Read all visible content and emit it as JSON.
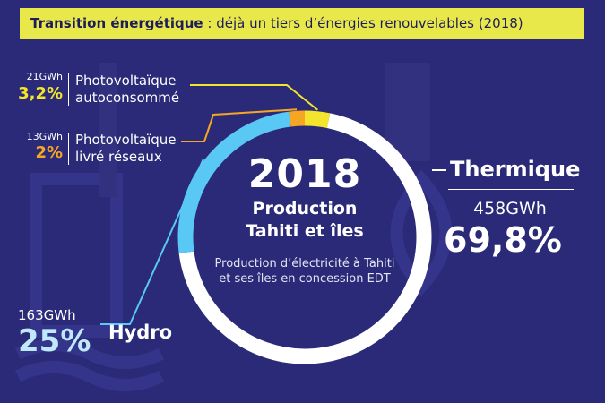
{
  "banner": {
    "bold": "Transition énergétique",
    "rest": " : déjà un tiers d’énergies renouvelables (2018)"
  },
  "center": {
    "year": "2018",
    "line1": "Production",
    "line2": "Tahiti et îles",
    "desc": "Production d’électricité à Tahiti et ses îles en concession EDT"
  },
  "colors": {
    "background": "#2a2a78",
    "banner": "#e9e84a",
    "thermique": "#ffffff",
    "hydro": "#5ac8f5",
    "pv_reseau": "#f5a623",
    "pv_auto": "#f2e52b"
  },
  "chart_data": {
    "type": "pie",
    "title": "2018",
    "subtitle": "Production Tahiti et îles",
    "slices": [
      {
        "name": "Photovoltaïque autoconsommé",
        "gwh_label": "21GWh",
        "pct_label": "3,2%",
        "value": 3.2,
        "color": "#f2e52b"
      },
      {
        "name": "Thermique",
        "gwh_label": "458GWh",
        "pct_label": "69,8%",
        "value": 69.8,
        "color": "#ffffff"
      },
      {
        "name": "Hydro",
        "gwh_label": "163GWh",
        "pct_label": "25%",
        "value": 25,
        "color": "#5ac8f5"
      },
      {
        "name": "Photovoltaïque livré réseaux",
        "gwh_label": "13GWh",
        "pct_label": "2%",
        "value": 2,
        "color": "#f5a623"
      }
    ]
  },
  "labels": {
    "pv_auto": {
      "gwh": "21GWh",
      "pct": "3,2%",
      "name1": "Photovoltaïque",
      "name2": "autoconsommé"
    },
    "pv_reseau": {
      "gwh": "13GWh",
      "pct": "2%",
      "name1": "Photovoltaïque",
      "name2": "livré réseaux"
    },
    "thermique": {
      "name": "Thermique",
      "gwh": "458GWh",
      "pct": "69,8%"
    },
    "hydro": {
      "gwh": "163GWh",
      "pct": "25%",
      "name": "Hydro"
    }
  }
}
